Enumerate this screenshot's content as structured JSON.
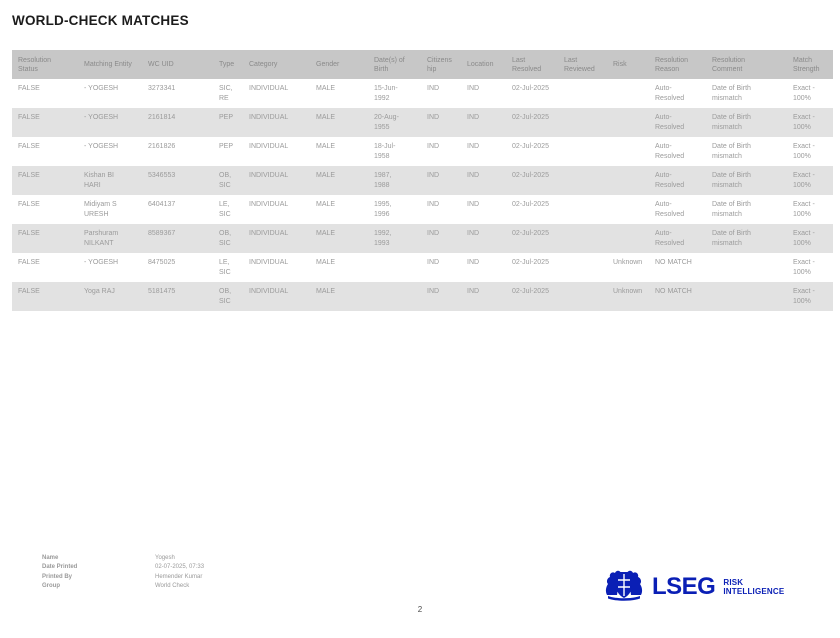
{
  "colors": {
    "brand_blue": "#0a1fb5",
    "header_bg": "#c7c7c7",
    "header_text": "#8a8a8a",
    "cell_text": "#9b9b9b",
    "row_alt_bg": "#e2e2e2",
    "title_text": "#1c1c1c",
    "footer_text": "#9a9a9a",
    "page_number_text": "#4a4a4a"
  },
  "page": {
    "title": "WORLD-CHECK MATCHES",
    "page_number": "2"
  },
  "table": {
    "columns": [
      "Resolution Status",
      "Matching Entity",
      "WC UID",
      "Type",
      "Category",
      "Gender",
      "Date(s) of Birth",
      "Citizenship",
      "Location",
      "Last Resolved",
      "Last Reviewed",
      "Risk",
      "Resolution Reason",
      "Resolution Comment",
      "Match Strength"
    ],
    "rows": [
      [
        "FALSE",
        "- YOGESH",
        "3273341",
        "SIC, RE",
        "INDIVIDUAL",
        "MALE",
        "15-Jun-1992",
        "IND",
        "IND",
        "02-Jul-2025",
        "",
        "",
        "Auto-Resolved",
        "Date of Birth mismatch",
        "Exact - 100%"
      ],
      [
        "FALSE",
        "- YOGESH",
        "2161814",
        "PEP",
        "INDIVIDUAL",
        "MALE",
        "20-Aug-1955",
        "IND",
        "IND",
        "02-Jul-2025",
        "",
        "",
        "Auto-Resolved",
        "Date of Birth mismatch",
        "Exact - 100%"
      ],
      [
        "FALSE",
        "- YOGESH",
        "2161826",
        "PEP",
        "INDIVIDUAL",
        "MALE",
        "18-Jul-1958",
        "IND",
        "IND",
        "02-Jul-2025",
        "",
        "",
        "Auto-Resolved",
        "Date of Birth mismatch",
        "Exact - 100%"
      ],
      [
        "FALSE",
        "Kishan BI HARI",
        "5346553",
        "OB, SIC",
        "INDIVIDUAL",
        "MALE",
        "1987, 1988",
        "IND",
        "IND",
        "02-Jul-2025",
        "",
        "",
        "Auto-Resolved",
        "Date of Birth mismatch",
        "Exact - 100%"
      ],
      [
        "FALSE",
        "Midiyam S URESH",
        "6404137",
        "LE, SIC",
        "INDIVIDUAL",
        "MALE",
        "1995, 1996",
        "IND",
        "IND",
        "02-Jul-2025",
        "",
        "",
        "Auto-Resolved",
        "Date of Birth mismatch",
        "Exact - 100%"
      ],
      [
        "FALSE",
        "Parshuram NILKANT",
        "8589367",
        "OB, SIC",
        "INDIVIDUAL",
        "MALE",
        "1992, 1993",
        "IND",
        "IND",
        "02-Jul-2025",
        "",
        "",
        "Auto-Resolved",
        "Date of Birth mismatch",
        "Exact - 100%"
      ],
      [
        "FALSE",
        "- YOGESH",
        "8475025",
        "LE, SIC",
        "INDIVIDUAL",
        "MALE",
        "",
        "IND",
        "IND",
        "02-Jul-2025",
        "",
        "Unknown",
        "NO MATCH",
        "",
        "Exact - 100%"
      ],
      [
        "FALSE",
        "Yoga RAJ",
        "5181475",
        "OB, SIC",
        "INDIVIDUAL",
        "MALE",
        "",
        "IND",
        "IND",
        "02-Jul-2025",
        "",
        "Unknown",
        "NO MATCH",
        "",
        "Exact - 100%"
      ]
    ]
  },
  "footer": {
    "fields": [
      {
        "label": "Name",
        "value": "Yogesh"
      },
      {
        "label": "Date Printed",
        "value": "02-07-2025, 07:33"
      },
      {
        "label": "Printed By",
        "value": "Hemender Kumar"
      },
      {
        "label": "Group",
        "value": "World Check"
      }
    ],
    "logo": {
      "crest_icon": "lseg-crest",
      "brand": "LSEG",
      "tagline_line1": "RISK",
      "tagline_line2": "INTELLIGENCE"
    }
  }
}
